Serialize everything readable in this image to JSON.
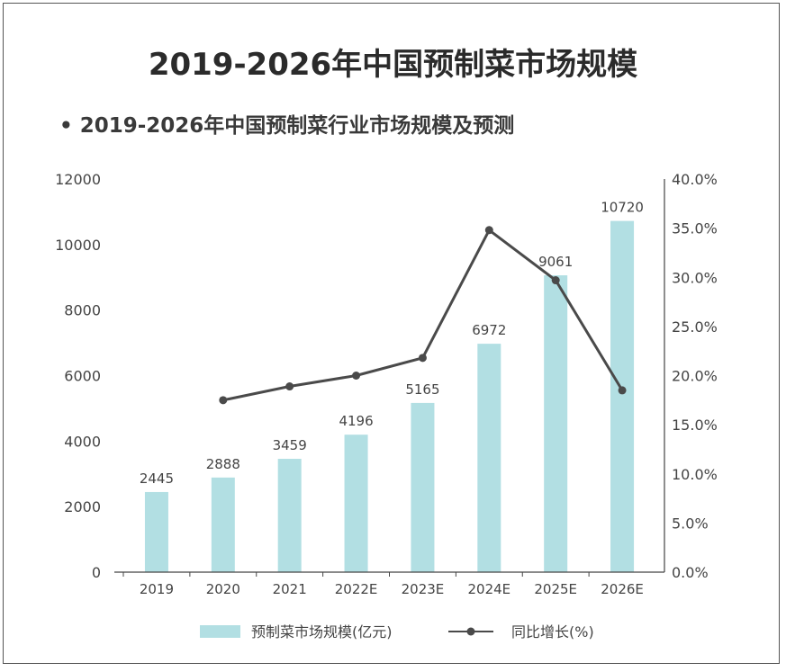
{
  "chart_data": {
    "type": "bar+line",
    "title": "2019-2026年中国预制菜市场规模",
    "subtitle": "2019-2026年中国预制菜行业市场规模及预测",
    "categories": [
      "2019",
      "2020",
      "2021",
      "2022E",
      "2023E",
      "2024E",
      "2025E",
      "2026E"
    ],
    "series": [
      {
        "name": "预制菜市场规模(亿元)",
        "type": "bar",
        "axis": "left",
        "values": [
          2445,
          2888,
          3459,
          4196,
          5165,
          6972,
          9061,
          10720
        ],
        "color": "#b2dfe3"
      },
      {
        "name": "同比增长(%)",
        "type": "line",
        "axis": "right",
        "values": [
          null,
          17.5,
          18.9,
          20.0,
          21.8,
          34.8,
          29.7,
          18.5
        ],
        "color": "#4a4a4a"
      }
    ],
    "y_left": {
      "range": [
        0,
        12000
      ],
      "ticks": [
        "0",
        "2000",
        "4000",
        "6000",
        "8000",
        "10000",
        "12000"
      ]
    },
    "y_right": {
      "range": [
        0,
        40
      ],
      "ticks": [
        "0.0%",
        "5.0%",
        "10.0%",
        "15.0%",
        "20.0%",
        "25.0%",
        "30.0%",
        "35.0%",
        "40.0%"
      ]
    },
    "legend_position": "bottom",
    "grid": false
  }
}
